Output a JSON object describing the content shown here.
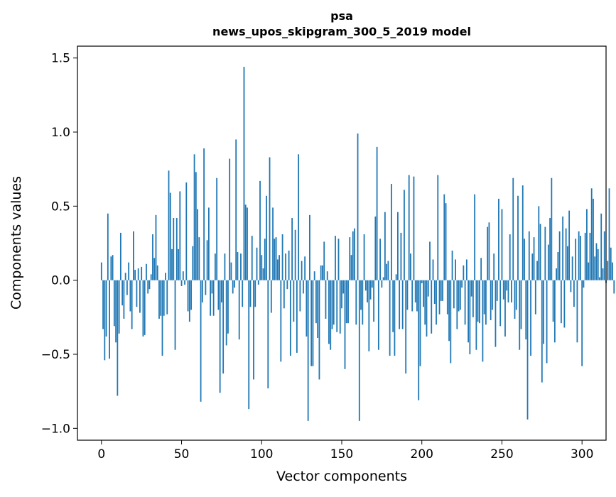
{
  "chart_data": {
    "type": "bar",
    "title_lines": [
      "psa",
      "news_upos_skipgram_300_5_2019 model"
    ],
    "xlabel": "Vector components",
    "ylabel": "Components values",
    "xlim": [
      -15,
      315
    ],
    "ylim": [
      -1.08,
      1.58
    ],
    "x_ticks": [
      0,
      50,
      100,
      150,
      200,
      250,
      300
    ],
    "x_tick_labels": [
      "0",
      "50",
      "100",
      "150",
      "200",
      "250",
      "300"
    ],
    "y_ticks": [
      -1.0,
      -0.5,
      0.0,
      0.5,
      1.0,
      1.5
    ],
    "y_tick_labels": [
      "−1.0",
      "−0.5",
      "0.0",
      "0.5",
      "1.0",
      "1.5"
    ],
    "grid": false,
    "bar_color": "#1f77b4",
    "x_start": 0,
    "values": [
      0.12,
      -0.33,
      -0.54,
      -0.38,
      0.45,
      -0.53,
      0.16,
      0.17,
      -0.31,
      -0.42,
      -0.78,
      -0.36,
      0.32,
      -0.17,
      -0.26,
      0.05,
      -0.1,
      0.12,
      -0.21,
      -0.33,
      0.33,
      0.07,
      -0.18,
      0.08,
      -0.22,
      0.09,
      -0.38,
      -0.37,
      0.11,
      -0.09,
      -0.06,
      0.04,
      0.31,
      0.15,
      0.44,
      0.1,
      -0.26,
      -0.24,
      -0.51,
      -0.24,
      0.05,
      -0.23,
      0.74,
      0.59,
      0.21,
      0.42,
      -0.47,
      0.42,
      0.21,
      0.6,
      -0.04,
      0.06,
      -0.03,
      0.66,
      -0.21,
      -0.28,
      -0.2,
      0.23,
      0.85,
      0.73,
      0.48,
      0.29,
      -0.82,
      -0.15,
      0.89,
      -0.1,
      0.27,
      0.49,
      -0.24,
      -0.09,
      -0.24,
      0.18,
      0.69,
      -0.2,
      -0.76,
      -0.15,
      -0.63,
      0.18,
      -0.44,
      -0.36,
      0.82,
      0.12,
      -0.09,
      -0.05,
      0.95,
      0.19,
      -0.4,
      0.18,
      -0.18,
      1.44,
      0.51,
      0.49,
      -0.87,
      -0.18,
      0.3,
      -0.67,
      -0.18,
      0.22,
      -0.03,
      0.67,
      0.17,
      0.08,
      0.28,
      0.57,
      -0.73,
      0.83,
      -0.22,
      0.49,
      0.28,
      0.29,
      0.14,
      0.17,
      -0.55,
      0.31,
      -0.19,
      0.18,
      -0.06,
      0.2,
      -0.51,
      0.42,
      -0.28,
      0.34,
      -0.49,
      0.85,
      -0.21,
      0.13,
      -0.09,
      0.16,
      -0.38,
      -0.95,
      0.44,
      -0.58,
      -0.58,
      0.06,
      -0.29,
      -0.39,
      -0.67,
      0.1,
      0.1,
      0.26,
      -0.26,
      0.06,
      -0.43,
      -0.47,
      -0.33,
      -0.3,
      0.3,
      -0.35,
      0.28,
      -0.36,
      -0.19,
      -0.09,
      -0.6,
      -0.29,
      -0.29,
      0.29,
      0.17,
      0.33,
      0.35,
      -0.3,
      0.99,
      -0.95,
      -0.2,
      -0.3,
      0.31,
      -0.07,
      -0.15,
      -0.48,
      -0.13,
      -0.05,
      -0.28,
      0.43,
      0.9,
      -0.47,
      0.28,
      -0.05,
      0.02,
      0.46,
      0.11,
      0.13,
      -0.51,
      0.65,
      -0.35,
      -0.51,
      0.04,
      0.46,
      -0.33,
      0.32,
      -0.33,
      0.61,
      -0.63,
      -0.2,
      0.71,
      0.18,
      -0.21,
      0.7,
      -0.15,
      -0.21,
      -0.81,
      -0.58,
      -0.02,
      -0.18,
      -0.3,
      -0.38,
      -0.11,
      0.26,
      -0.36,
      0.14,
      -0.16,
      -0.3,
      0.71,
      -0.23,
      -0.14,
      -0.14,
      0.58,
      0.52,
      -0.23,
      -0.41,
      -0.56,
      0.2,
      -0.19,
      0.14,
      -0.33,
      -0.21,
      -0.2,
      -0.05,
      0.1,
      -0.3,
      0.14,
      -0.42,
      -0.5,
      -0.11,
      -0.25,
      0.58,
      -0.47,
      -0.28,
      -0.29,
      0.15,
      -0.55,
      -0.23,
      -0.3,
      0.36,
      0.39,
      -0.27,
      -0.2,
      0.18,
      -0.45,
      -0.14,
      0.55,
      -0.31,
      0.48,
      -0.13,
      -0.38,
      -0.07,
      -0.15,
      0.31,
      -0.15,
      0.69,
      -0.26,
      -0.2,
      0.57,
      -0.47,
      -0.33,
      0.64,
      0.28,
      -0.4,
      -0.94,
      0.33,
      -0.51,
      0.18,
      0.29,
      -0.23,
      0.13,
      0.5,
      0.38,
      -0.69,
      -0.43,
      0.36,
      -0.56,
      0.24,
      0.42,
      0.69,
      -0.28,
      -0.42,
      0.08,
      0.19,
      0.33,
      -0.29,
      0.43,
      -0.32,
      0.35,
      0.23,
      0.47,
      -0.08,
      0.16,
      -0.18,
      0.28,
      -0.42,
      0.33,
      0.3,
      -0.58,
      -0.05,
      0.32,
      0.48,
      0.12,
      0.32,
      0.62,
      0.55,
      0.16,
      0.25,
      0.21,
      0.02,
      0.45,
      0.08,
      0.33,
      -0.02,
      0.13,
      0.62,
      0.22,
      0.12,
      -0.09
    ]
  }
}
